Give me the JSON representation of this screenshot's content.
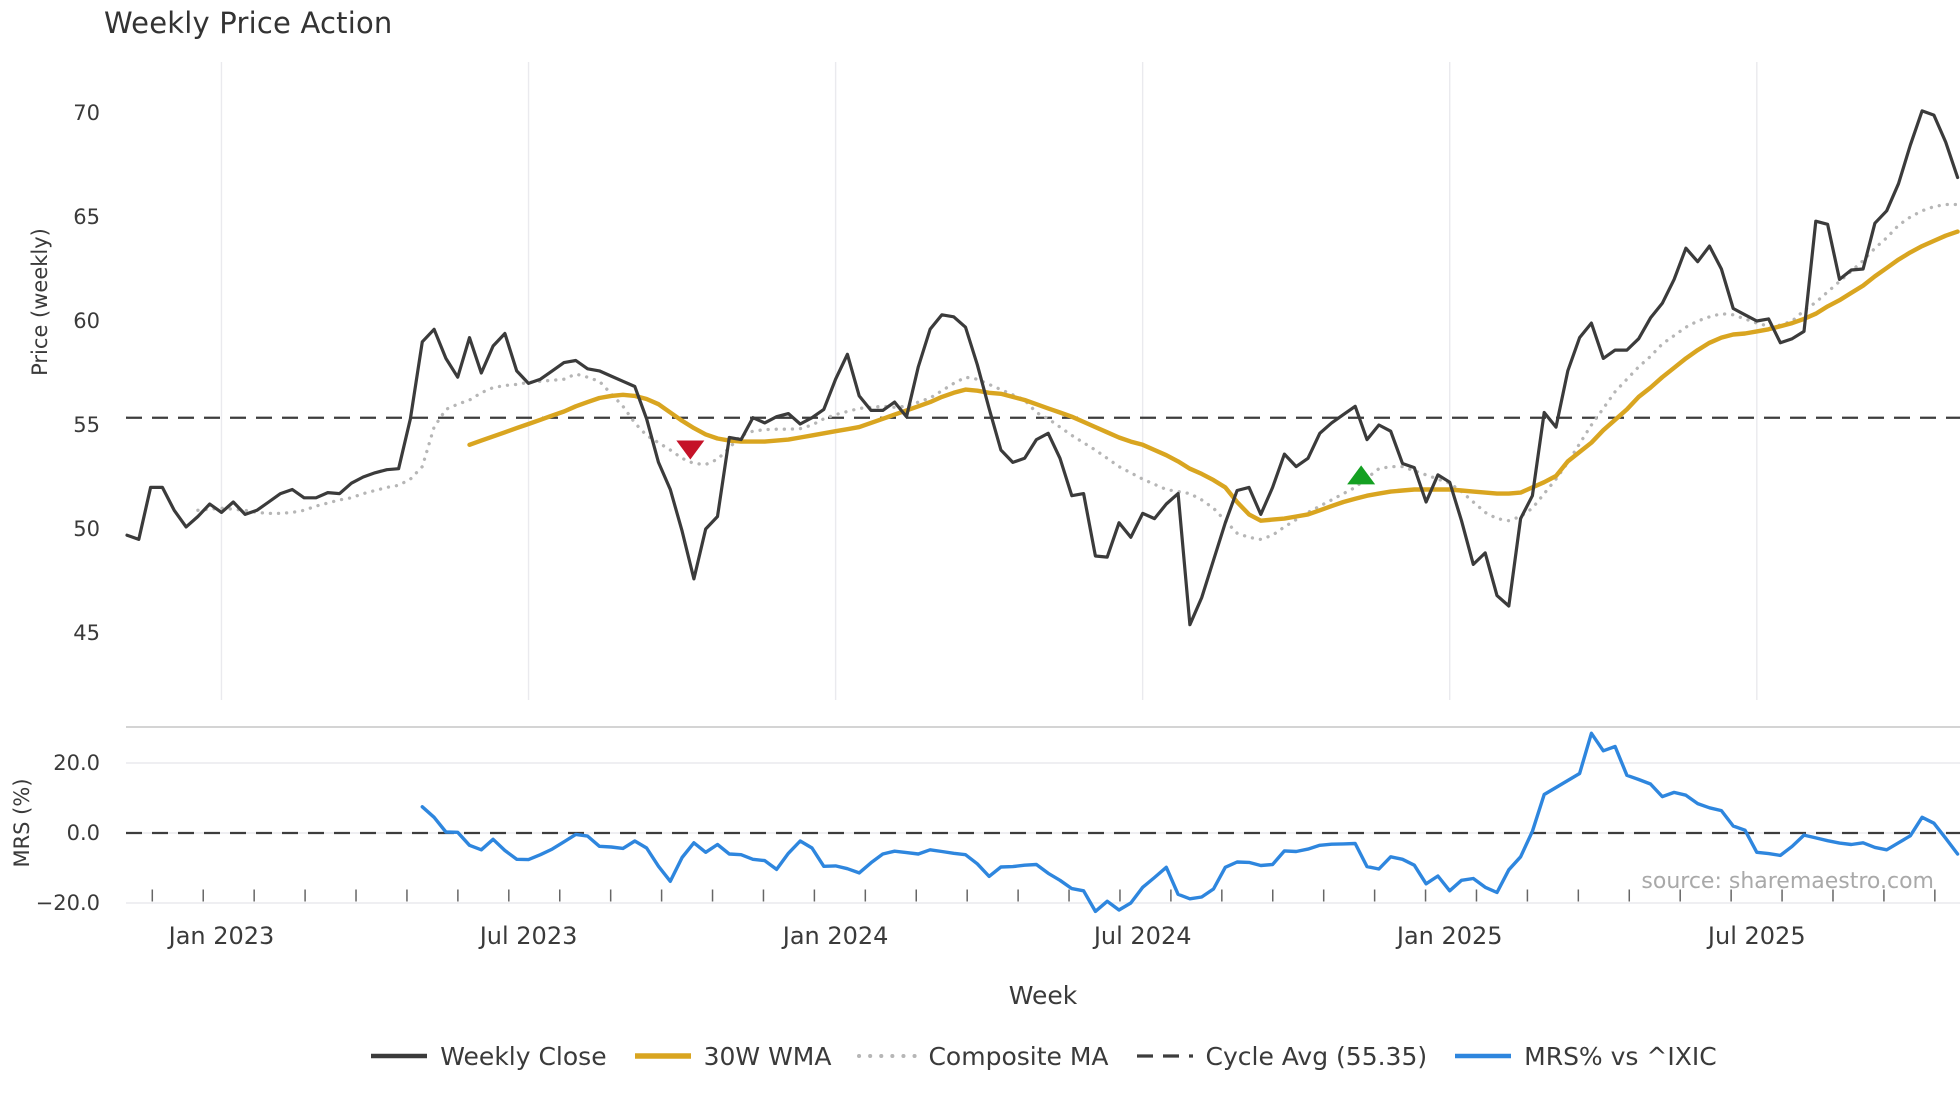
{
  "source_note": "source: sharemaestro.com",
  "colors": {
    "close": "#3b3b3b",
    "wma": "#d9a520",
    "composite": "#b6b6b6",
    "cycle_avg": "#3d3d3d",
    "mrs": "#2e86de",
    "marker_down": "#c51228",
    "marker_up": "#14a022",
    "gridline": "#eaeaee",
    "panel_spine": "#c6c6c6",
    "minor_tick": "#666666",
    "text": "#3a3a3a",
    "source_text": "#a9a9a9"
  },
  "chart_data": {
    "type": "line",
    "title": "Weekly Price Action",
    "x_axis": {
      "label": "Week",
      "ticks": [
        {
          "week": 8,
          "label": "Jan 2023"
        },
        {
          "week": 34,
          "label": "Jul 2023"
        },
        {
          "week": 60,
          "label": "Jan 2024"
        },
        {
          "week": 86,
          "label": "Jul 2024"
        },
        {
          "week": 112,
          "label": "Jan 2025"
        },
        {
          "week": 138,
          "label": "Jul 2025"
        }
      ]
    },
    "price_panel": {
      "ylabel": "Price (weekly)",
      "ylim": [
        41.8,
        72.4
      ],
      "yticks": [
        45,
        50,
        55,
        60,
        65,
        70
      ],
      "cycle_avg": 55.35
    },
    "mrs_panel": {
      "ylabel": "MRS (%)",
      "ylim": [
        -24.9,
        30.3
      ],
      "yticks": [
        {
          "value": 20,
          "label": "20.0"
        },
        {
          "value": 0,
          "label": "0.0"
        },
        {
          "value": -20,
          "label": "−20.0"
        }
      ],
      "zero_line": 0
    },
    "weeks_total": 156,
    "series": [
      {
        "name": "Weekly Close",
        "panel": "price",
        "style": "solid",
        "width": 3.2,
        "color_key": "close",
        "start_week": 0,
        "values": [
          49.7,
          49.5,
          52.0,
          52.0,
          50.9,
          50.1,
          50.6,
          51.2,
          50.8,
          51.3,
          50.7,
          50.9,
          51.3,
          51.7,
          51.9,
          51.5,
          51.5,
          51.75,
          51.7,
          52.2,
          52.5,
          52.7,
          52.85,
          52.9,
          55.3,
          59.0,
          59.6,
          58.2,
          57.3,
          59.2,
          57.5,
          58.8,
          59.4,
          57.6,
          57.0,
          57.2,
          57.6,
          58.0,
          58.1,
          57.7,
          57.6,
          57.35,
          57.1,
          56.85,
          55.3,
          53.2,
          51.9,
          49.9,
          47.6,
          50.0,
          50.6,
          54.4,
          54.3,
          55.35,
          55.1,
          55.4,
          55.55,
          55.05,
          55.35,
          55.75,
          57.2,
          58.4,
          56.4,
          55.7,
          55.7,
          56.1,
          55.4,
          57.8,
          59.6,
          60.3,
          60.2,
          59.7,
          57.9,
          55.8,
          53.8,
          53.2,
          53.4,
          54.3,
          54.6,
          53.4,
          51.6,
          51.7,
          48.7,
          48.65,
          50.3,
          49.6,
          50.75,
          50.5,
          51.2,
          51.7,
          45.4,
          46.7,
          48.5,
          50.3,
          51.85,
          52.0,
          50.7,
          52.0,
          53.6,
          53.0,
          53.4,
          54.6,
          55.1,
          55.5,
          55.9,
          54.3,
          55.0,
          54.7,
          53.15,
          52.95,
          51.3,
          52.6,
          52.25,
          50.4,
          48.3,
          48.85,
          46.8,
          46.3,
          50.5,
          51.6,
          55.6,
          54.9,
          57.6,
          59.2,
          59.9,
          58.2,
          58.6,
          58.6,
          59.15,
          60.15,
          60.85,
          62.0,
          63.5,
          62.85,
          63.6,
          62.5,
          60.6,
          60.3,
          60.0,
          60.1,
          58.95,
          59.15,
          59.5,
          64.8,
          64.65,
          62.0,
          62.45,
          62.5,
          64.7,
          65.3,
          66.6,
          68.45,
          70.1,
          69.9,
          68.6,
          66.9
        ]
      },
      {
        "name": "30W WMA",
        "panel": "price",
        "style": "solid",
        "width": 4.4,
        "color_key": "wma",
        "start_week": 29,
        "values": [
          54.05,
          54.25,
          54.45,
          54.65,
          54.85,
          55.05,
          55.25,
          55.45,
          55.65,
          55.9,
          56.1,
          56.3,
          56.4,
          56.45,
          56.4,
          56.25,
          56.0,
          55.6,
          55.2,
          54.85,
          54.55,
          54.35,
          54.25,
          54.2,
          54.2,
          54.2,
          54.25,
          54.3,
          54.4,
          54.5,
          54.6,
          54.7,
          54.8,
          54.9,
          55.1,
          55.3,
          55.5,
          55.7,
          55.9,
          56.1,
          56.35,
          56.55,
          56.7,
          56.65,
          56.55,
          56.5,
          56.35,
          56.2,
          56.0,
          55.8,
          55.6,
          55.4,
          55.15,
          54.9,
          54.65,
          54.4,
          54.2,
          54.05,
          53.8,
          53.55,
          53.25,
          52.9,
          52.65,
          52.35,
          52.0,
          51.3,
          50.7,
          50.4,
          50.45,
          50.5,
          50.6,
          50.7,
          50.9,
          51.1,
          51.3,
          51.45,
          51.6,
          51.7,
          51.8,
          51.85,
          51.9,
          51.9,
          51.9,
          51.9,
          51.85,
          51.8,
          51.75,
          51.7,
          51.7,
          51.75,
          52.0,
          52.25,
          52.55,
          53.25,
          53.7,
          54.15,
          54.75,
          55.25,
          55.75,
          56.35,
          56.8,
          57.3,
          57.75,
          58.2,
          58.6,
          58.95,
          59.2,
          59.35,
          59.4,
          59.5,
          59.6,
          59.75,
          59.9,
          60.1,
          60.35,
          60.7,
          61.0,
          61.35,
          61.7,
          62.15,
          62.55,
          62.95,
          63.3,
          63.6,
          63.85,
          64.1,
          64.3
        ]
      },
      {
        "name": "Composite MA",
        "panel": "price",
        "style": "dotted",
        "width": 3.3,
        "color_key": "composite",
        "start_week": 6,
        "values": [
          50.9,
          50.95,
          51.0,
          50.95,
          50.9,
          50.8,
          50.75,
          50.75,
          50.8,
          50.9,
          51.1,
          51.25,
          51.4,
          51.5,
          51.7,
          51.85,
          52.0,
          52.1,
          52.4,
          53.0,
          54.9,
          55.75,
          56.0,
          56.2,
          56.55,
          56.8,
          56.9,
          56.95,
          57.05,
          57.1,
          57.15,
          57.2,
          57.45,
          57.3,
          57.1,
          56.5,
          55.9,
          55.1,
          54.5,
          54.15,
          53.8,
          53.4,
          53.15,
          53.1,
          53.35,
          53.9,
          54.5,
          54.7,
          54.78,
          54.8,
          54.8,
          54.82,
          55.0,
          55.3,
          55.5,
          55.65,
          55.8,
          55.85,
          55.9,
          55.85,
          55.9,
          56.1,
          56.3,
          56.65,
          57.0,
          57.3,
          57.2,
          56.95,
          56.7,
          56.45,
          56.2,
          55.6,
          55.3,
          54.9,
          54.5,
          54.15,
          53.8,
          53.4,
          53.0,
          52.7,
          52.4,
          52.15,
          51.9,
          51.8,
          51.7,
          51.4,
          51.0,
          50.4,
          49.8,
          49.6,
          49.5,
          49.7,
          50.1,
          50.45,
          50.8,
          51.1,
          51.4,
          51.7,
          52.0,
          52.45,
          52.9,
          53.0,
          53.0,
          52.8,
          52.6,
          52.4,
          52.2,
          51.8,
          51.3,
          50.8,
          50.5,
          50.4,
          50.6,
          51.0,
          51.7,
          52.4,
          53.2,
          54.1,
          55.0,
          55.8,
          56.6,
          57.2,
          57.8,
          58.3,
          58.9,
          59.3,
          59.7,
          60.0,
          60.2,
          60.35,
          60.3,
          60.1,
          59.9,
          59.75,
          59.8,
          60.0,
          60.5,
          60.9,
          61.4,
          61.9,
          62.4,
          62.9,
          63.5,
          64.0,
          64.6,
          65.0,
          65.3,
          65.5,
          65.6,
          65.6
        ]
      },
      {
        "name": "MRS% vs ^IXIC",
        "panel": "mrs",
        "style": "solid",
        "width": 3.4,
        "color_key": "mrs",
        "start_week": 25,
        "values": [
          7.5,
          4.5,
          0.3,
          0.2,
          -3.5,
          -4.8,
          -1.8,
          -5.0,
          -7.5,
          -7.6,
          -6.2,
          -4.6,
          -2.5,
          -0.4,
          -0.9,
          -3.8,
          -4.0,
          -4.4,
          -2.3,
          -4.3,
          -9.5,
          -13.8,
          -7.0,
          -2.8,
          -5.5,
          -3.3,
          -6.0,
          -6.2,
          -7.5,
          -7.9,
          -10.4,
          -5.8,
          -2.3,
          -4.3,
          -9.5,
          -9.4,
          -10.2,
          -11.4,
          -8.5,
          -6.0,
          -5.2,
          -5.6,
          -6.0,
          -4.8,
          -5.3,
          -5.8,
          -6.2,
          -8.8,
          -12.4,
          -9.7,
          -9.6,
          -9.2,
          -9.0,
          -11.5,
          -13.5,
          -15.9,
          -16.5,
          -22.4,
          -19.5,
          -22.0,
          -20.0,
          -15.5,
          -12.7,
          -9.8,
          -17.5,
          -18.8,
          -18.3,
          -16.0,
          -9.8,
          -8.3,
          -8.4,
          -9.3,
          -9.0,
          -5.1,
          -5.3,
          -4.6,
          -3.5,
          -3.2,
          -3.1,
          -3.0,
          -9.6,
          -10.3,
          -6.8,
          -7.5,
          -9.2,
          -14.5,
          -12.3,
          -16.5,
          -13.5,
          -13.0,
          -15.5,
          -17.0,
          -10.5,
          -6.8,
          0.5,
          11.0,
          13.0,
          15.0,
          17.0,
          28.5,
          23.5,
          24.7,
          16.5,
          15.3,
          14.0,
          10.4,
          11.6,
          10.8,
          8.4,
          7.2,
          6.4,
          2.0,
          0.8,
          -5.5,
          -5.9,
          -6.4,
          -3.8,
          -0.6,
          -1.4,
          -2.2,
          -2.9,
          -3.3,
          -2.8,
          -4.1,
          -4.8,
          -2.8,
          -0.8,
          4.5,
          2.8,
          -1.5,
          -6.0
        ]
      }
    ],
    "reference_lines": [
      {
        "name": "Cycle Avg (55.35)",
        "panel": "price",
        "value": 55.35,
        "style": "dashed",
        "color_key": "cycle_avg"
      },
      {
        "name": "MRS zero",
        "panel": "mrs",
        "value": 0,
        "style": "dashed",
        "color_key": "cycle_avg"
      }
    ],
    "markers": [
      {
        "week": 47.7,
        "value": 53.8,
        "shape": "triangle-down",
        "color_key": "marker_down"
      },
      {
        "week": 104.5,
        "value": 52.6,
        "shape": "triangle-up",
        "color_key": "marker_up"
      }
    ],
    "legend": [
      {
        "label": "Weekly Close",
        "swatch": "solid",
        "color_key": "close",
        "thickness": 4.5
      },
      {
        "label": "30W WMA",
        "swatch": "solid",
        "color_key": "wma",
        "thickness": 5.5
      },
      {
        "label": "Composite MA",
        "swatch": "dotted",
        "color_key": "composite",
        "thickness": 4.0
      },
      {
        "label": "Cycle Avg (55.35)",
        "swatch": "dashed",
        "color_key": "cycle_avg",
        "thickness": 3.2
      },
      {
        "label": "MRS% vs ^IXIC",
        "swatch": "solid",
        "color_key": "mrs",
        "thickness": 4.5
      }
    ]
  }
}
